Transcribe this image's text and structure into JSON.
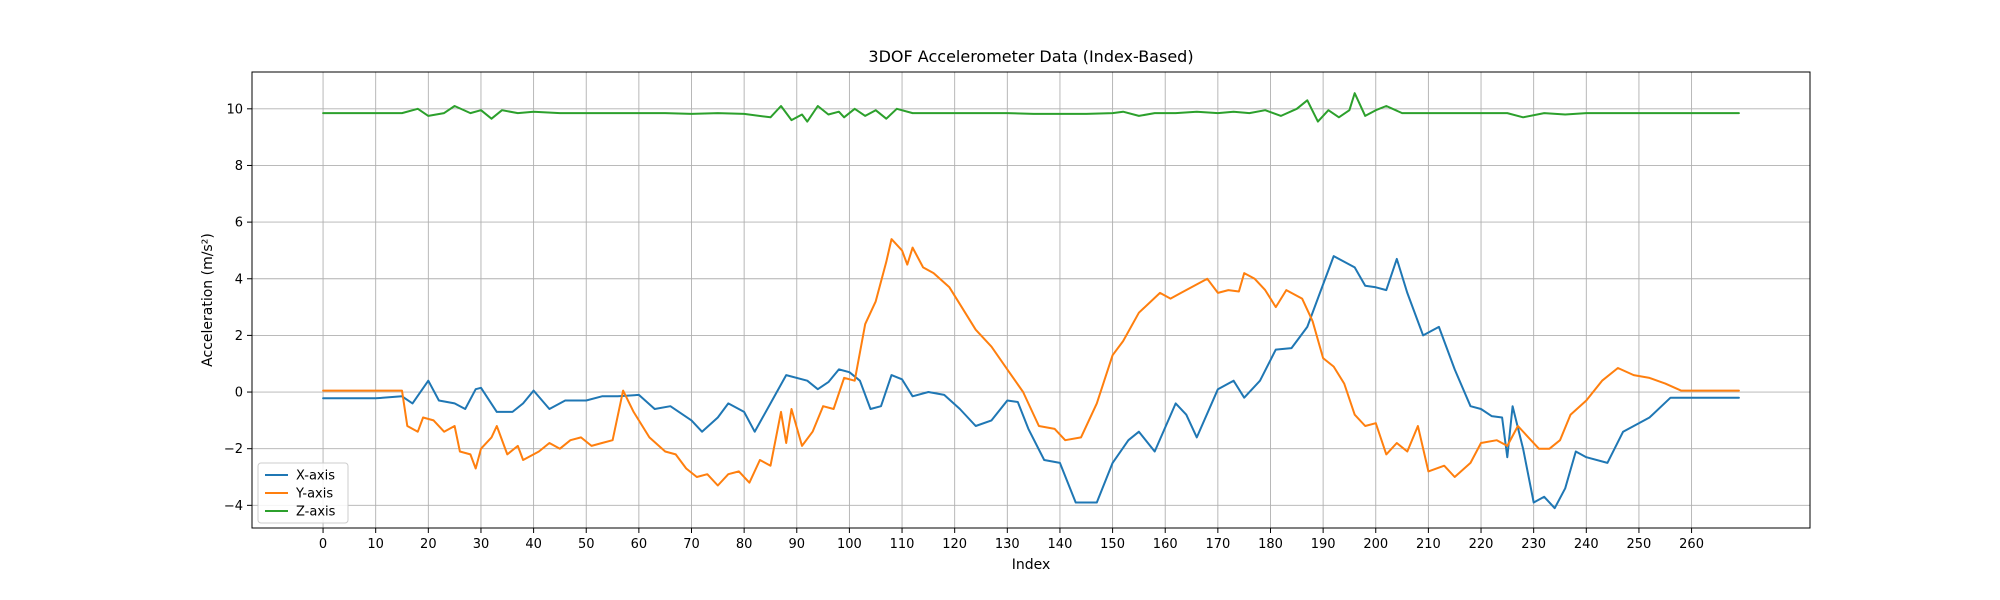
{
  "chart_data": {
    "type": "line",
    "title": "3DOF Accelerometer Data (Index-Based)",
    "xlabel": "Index",
    "ylabel": "Acceleration (m/s²)",
    "xlim": [
      -13.5,
      282.5
    ],
    "ylim": [
      -4.8,
      11.3
    ],
    "xticks": [
      0,
      10,
      20,
      30,
      40,
      50,
      60,
      70,
      80,
      90,
      100,
      110,
      120,
      130,
      140,
      150,
      160,
      170,
      180,
      190,
      200,
      210,
      220,
      230,
      240,
      250,
      260
    ],
    "yticks": [
      -4,
      -2,
      0,
      2,
      4,
      6,
      8,
      10
    ],
    "grid": true,
    "legend_position": "lower-left",
    "series": [
      {
        "name": "X-axis",
        "color": "#1f77b4",
        "points": [
          [
            0,
            -0.22
          ],
          [
            5,
            -0.22
          ],
          [
            10,
            -0.22
          ],
          [
            15,
            -0.15
          ],
          [
            17,
            -0.4
          ],
          [
            20,
            0.4
          ],
          [
            22,
            -0.3
          ],
          [
            25,
            -0.4
          ],
          [
            27,
            -0.6
          ],
          [
            29,
            0.1
          ],
          [
            30,
            0.15
          ],
          [
            33,
            -0.7
          ],
          [
            36,
            -0.7
          ],
          [
            38,
            -0.4
          ],
          [
            40,
            0.05
          ],
          [
            43,
            -0.6
          ],
          [
            46,
            -0.3
          ],
          [
            50,
            -0.3
          ],
          [
            53,
            -0.15
          ],
          [
            56,
            -0.15
          ],
          [
            60,
            -0.1
          ],
          [
            63,
            -0.6
          ],
          [
            66,
            -0.5
          ],
          [
            70,
            -1.0
          ],
          [
            72,
            -1.4
          ],
          [
            75,
            -0.9
          ],
          [
            77,
            -0.4
          ],
          [
            80,
            -0.7
          ],
          [
            82,
            -1.4
          ],
          [
            85,
            -0.4
          ],
          [
            88,
            0.6
          ],
          [
            92,
            0.4
          ],
          [
            94,
            0.1
          ],
          [
            96,
            0.35
          ],
          [
            98,
            0.8
          ],
          [
            100,
            0.7
          ],
          [
            102,
            0.4
          ],
          [
            104,
            -0.6
          ],
          [
            106,
            -0.5
          ],
          [
            108,
            0.6
          ],
          [
            110,
            0.45
          ],
          [
            112,
            -0.15
          ],
          [
            115,
            0.0
          ],
          [
            118,
            -0.1
          ],
          [
            121,
            -0.6
          ],
          [
            124,
            -1.2
          ],
          [
            127,
            -1.0
          ],
          [
            130,
            -0.3
          ],
          [
            132,
            -0.35
          ],
          [
            134,
            -1.3
          ],
          [
            137,
            -2.4
          ],
          [
            140,
            -2.5
          ],
          [
            143,
            -3.9
          ],
          [
            145,
            -3.9
          ],
          [
            147,
            -3.9
          ],
          [
            150,
            -2.5
          ],
          [
            153,
            -1.7
          ],
          [
            155,
            -1.4
          ],
          [
            158,
            -2.1
          ],
          [
            162,
            -0.4
          ],
          [
            164,
            -0.8
          ],
          [
            166,
            -1.6
          ],
          [
            170,
            0.1
          ],
          [
            173,
            0.4
          ],
          [
            175,
            -0.2
          ],
          [
            178,
            0.4
          ],
          [
            181,
            1.5
          ],
          [
            184,
            1.55
          ],
          [
            187,
            2.3
          ],
          [
            190,
            3.8
          ],
          [
            192,
            4.8
          ],
          [
            194,
            4.6
          ],
          [
            196,
            4.4
          ],
          [
            198,
            3.75
          ],
          [
            200,
            3.7
          ],
          [
            202,
            3.6
          ],
          [
            204,
            4.7
          ],
          [
            206,
            3.5
          ],
          [
            209,
            2.0
          ],
          [
            212,
            2.3
          ],
          [
            215,
            0.8
          ],
          [
            218,
            -0.5
          ],
          [
            220,
            -0.6
          ],
          [
            222,
            -0.85
          ],
          [
            224,
            -0.9
          ],
          [
            225,
            -2.3
          ],
          [
            226,
            -0.5
          ],
          [
            228,
            -2.0
          ],
          [
            230,
            -3.9
          ],
          [
            232,
            -3.7
          ],
          [
            234,
            -4.1
          ],
          [
            236,
            -3.4
          ],
          [
            238,
            -2.1
          ],
          [
            240,
            -2.3
          ],
          [
            244,
            -2.5
          ],
          [
            247,
            -1.4
          ],
          [
            252,
            -0.9
          ],
          [
            256,
            -0.2
          ],
          [
            260,
            -0.2
          ],
          [
            265,
            -0.2
          ],
          [
            269,
            -0.2
          ]
        ]
      },
      {
        "name": "Y-axis",
        "color": "#ff7f0e",
        "points": [
          [
            0,
            0.05
          ],
          [
            5,
            0.05
          ],
          [
            10,
            0.05
          ],
          [
            15,
            0.05
          ],
          [
            16,
            -1.2
          ],
          [
            18,
            -1.4
          ],
          [
            19,
            -0.9
          ],
          [
            21,
            -1.0
          ],
          [
            23,
            -1.4
          ],
          [
            25,
            -1.2
          ],
          [
            26,
            -2.1
          ],
          [
            28,
            -2.2
          ],
          [
            29,
            -2.7
          ],
          [
            30,
            -2.0
          ],
          [
            32,
            -1.6
          ],
          [
            33,
            -1.2
          ],
          [
            35,
            -2.2
          ],
          [
            37,
            -1.9
          ],
          [
            38,
            -2.4
          ],
          [
            41,
            -2.1
          ],
          [
            43,
            -1.8
          ],
          [
            45,
            -2.0
          ],
          [
            47,
            -1.7
          ],
          [
            49,
            -1.6
          ],
          [
            51,
            -1.9
          ],
          [
            53,
            -1.8
          ],
          [
            55,
            -1.7
          ],
          [
            57,
            0.05
          ],
          [
            59,
            -0.7
          ],
          [
            62,
            -1.6
          ],
          [
            65,
            -2.1
          ],
          [
            67,
            -2.2
          ],
          [
            69,
            -2.7
          ],
          [
            71,
            -3.0
          ],
          [
            73,
            -2.9
          ],
          [
            75,
            -3.3
          ],
          [
            77,
            -2.9
          ],
          [
            79,
            -2.8
          ],
          [
            81,
            -3.2
          ],
          [
            83,
            -2.4
          ],
          [
            85,
            -2.6
          ],
          [
            87,
            -0.7
          ],
          [
            88,
            -1.8
          ],
          [
            89,
            -0.6
          ],
          [
            91,
            -1.9
          ],
          [
            93,
            -1.4
          ],
          [
            95,
            -0.5
          ],
          [
            97,
            -0.6
          ],
          [
            99,
            0.5
          ],
          [
            101,
            0.4
          ],
          [
            103,
            2.4
          ],
          [
            105,
            3.2
          ],
          [
            107,
            4.6
          ],
          [
            108,
            5.4
          ],
          [
            110,
            5.0
          ],
          [
            111,
            4.5
          ],
          [
            112,
            5.1
          ],
          [
            114,
            4.4
          ],
          [
            116,
            4.2
          ],
          [
            119,
            3.7
          ],
          [
            121,
            3.1
          ],
          [
            124,
            2.2
          ],
          [
            127,
            1.6
          ],
          [
            130,
            0.8
          ],
          [
            133,
            0.0
          ],
          [
            136,
            -1.2
          ],
          [
            139,
            -1.3
          ],
          [
            141,
            -1.7
          ],
          [
            144,
            -1.6
          ],
          [
            147,
            -0.4
          ],
          [
            150,
            1.3
          ],
          [
            152,
            1.8
          ],
          [
            155,
            2.8
          ],
          [
            159,
            3.5
          ],
          [
            161,
            3.3
          ],
          [
            163,
            3.5
          ],
          [
            166,
            3.8
          ],
          [
            168,
            4.0
          ],
          [
            170,
            3.5
          ],
          [
            172,
            3.6
          ],
          [
            174,
            3.55
          ],
          [
            175,
            4.2
          ],
          [
            177,
            4.0
          ],
          [
            179,
            3.6
          ],
          [
            181,
            3.0
          ],
          [
            183,
            3.6
          ],
          [
            186,
            3.3
          ],
          [
            188,
            2.5
          ],
          [
            190,
            1.2
          ],
          [
            192,
            0.9
          ],
          [
            194,
            0.3
          ],
          [
            196,
            -0.8
          ],
          [
            198,
            -1.2
          ],
          [
            200,
            -1.1
          ],
          [
            202,
            -2.2
          ],
          [
            204,
            -1.8
          ],
          [
            206,
            -2.1
          ],
          [
            208,
            -1.2
          ],
          [
            210,
            -2.8
          ],
          [
            213,
            -2.6
          ],
          [
            215,
            -3.0
          ],
          [
            218,
            -2.5
          ],
          [
            220,
            -1.8
          ],
          [
            223,
            -1.7
          ],
          [
            225,
            -1.9
          ],
          [
            227,
            -1.2
          ],
          [
            229,
            -1.6
          ],
          [
            231,
            -2.0
          ],
          [
            233,
            -2.0
          ],
          [
            235,
            -1.7
          ],
          [
            237,
            -0.8
          ],
          [
            240,
            -0.3
          ],
          [
            243,
            0.4
          ],
          [
            246,
            0.85
          ],
          [
            249,
            0.6
          ],
          [
            252,
            0.5
          ],
          [
            255,
            0.3
          ],
          [
            258,
            0.05
          ],
          [
            264,
            0.05
          ],
          [
            269,
            0.05
          ]
        ]
      },
      {
        "name": "Z-axis",
        "color": "#2ca02c",
        "points": [
          [
            0,
            9.85
          ],
          [
            5,
            9.85
          ],
          [
            10,
            9.85
          ],
          [
            15,
            9.85
          ],
          [
            18,
            10.0
          ],
          [
            20,
            9.75
          ],
          [
            23,
            9.85
          ],
          [
            25,
            10.1
          ],
          [
            28,
            9.85
          ],
          [
            30,
            9.95
          ],
          [
            32,
            9.65
          ],
          [
            34,
            9.95
          ],
          [
            37,
            9.85
          ],
          [
            40,
            9.9
          ],
          [
            45,
            9.85
          ],
          [
            50,
            9.85
          ],
          [
            55,
            9.85
          ],
          [
            60,
            9.85
          ],
          [
            65,
            9.85
          ],
          [
            70,
            9.82
          ],
          [
            75,
            9.85
          ],
          [
            80,
            9.82
          ],
          [
            85,
            9.7
          ],
          [
            87,
            10.1
          ],
          [
            89,
            9.6
          ],
          [
            91,
            9.8
          ],
          [
            92,
            9.55
          ],
          [
            94,
            10.1
          ],
          [
            96,
            9.8
          ],
          [
            98,
            9.9
          ],
          [
            99,
            9.7
          ],
          [
            101,
            10.0
          ],
          [
            103,
            9.75
          ],
          [
            105,
            9.95
          ],
          [
            107,
            9.65
          ],
          [
            109,
            10.0
          ],
          [
            112,
            9.85
          ],
          [
            116,
            9.85
          ],
          [
            120,
            9.85
          ],
          [
            125,
            9.85
          ],
          [
            130,
            9.85
          ],
          [
            135,
            9.82
          ],
          [
            140,
            9.82
          ],
          [
            145,
            9.82
          ],
          [
            150,
            9.85
          ],
          [
            152,
            9.9
          ],
          [
            155,
            9.75
          ],
          [
            158,
            9.85
          ],
          [
            162,
            9.85
          ],
          [
            166,
            9.9
          ],
          [
            170,
            9.85
          ],
          [
            173,
            9.9
          ],
          [
            176,
            9.85
          ],
          [
            179,
            9.95
          ],
          [
            182,
            9.75
          ],
          [
            185,
            10.0
          ],
          [
            187,
            10.3
          ],
          [
            189,
            9.55
          ],
          [
            191,
            9.95
          ],
          [
            193,
            9.7
          ],
          [
            195,
            9.95
          ],
          [
            196,
            10.55
          ],
          [
            198,
            9.75
          ],
          [
            200,
            9.95
          ],
          [
            202,
            10.1
          ],
          [
            205,
            9.85
          ],
          [
            208,
            9.85
          ],
          [
            212,
            9.85
          ],
          [
            216,
            9.85
          ],
          [
            220,
            9.85
          ],
          [
            225,
            9.85
          ],
          [
            228,
            9.7
          ],
          [
            232,
            9.85
          ],
          [
            236,
            9.8
          ],
          [
            240,
            9.85
          ],
          [
            245,
            9.85
          ],
          [
            250,
            9.85
          ],
          [
            255,
            9.85
          ],
          [
            260,
            9.85
          ],
          [
            265,
            9.85
          ],
          [
            269,
            9.85
          ]
        ]
      }
    ]
  }
}
